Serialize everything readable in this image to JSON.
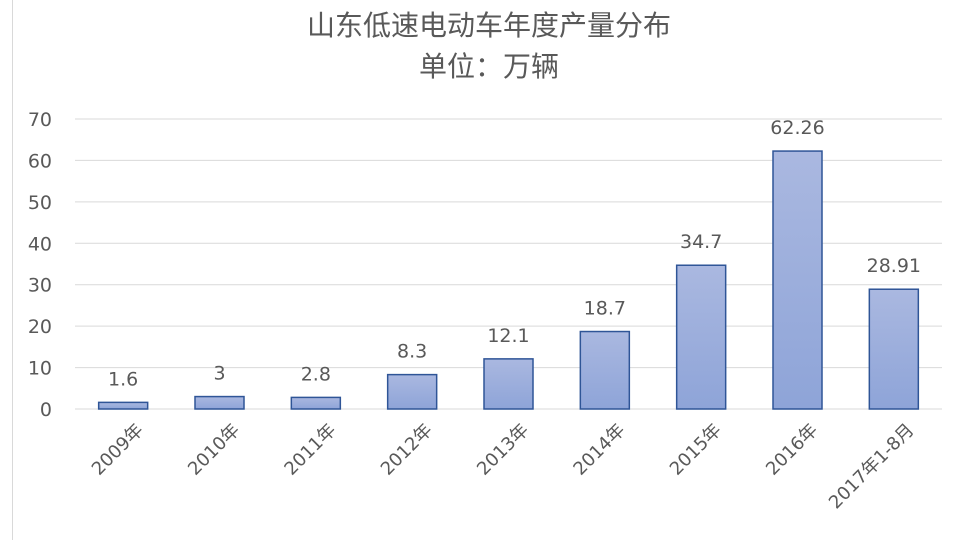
{
  "chart_data": {
    "type": "bar",
    "title": "山东低速电动车年度产量分布",
    "subtitle": "单位：万辆",
    "categories": [
      "2009年",
      "2010年",
      "2011年",
      "2012年",
      "2013年",
      "2014年",
      "2015年",
      "2016年",
      "2017年1-8月"
    ],
    "values": [
      1.6,
      3,
      2.8,
      8.3,
      12.1,
      18.7,
      34.7,
      62.26,
      28.91
    ],
    "value_labels": [
      "1.6",
      "3",
      "2.8",
      "8.3",
      "12.1",
      "18.7",
      "34.7",
      "62.26",
      "28.91"
    ],
    "y_ticks": [
      "0",
      "10",
      "20",
      "30",
      "40",
      "50",
      "60",
      "70"
    ],
    "ylim": [
      0,
      70
    ],
    "grid": true,
    "legend": "none",
    "colors": {
      "bar_top": "#aab8e0",
      "bar_bottom": "#8ea4d8",
      "bar_stroke": "#2f5597",
      "grid": "#d9d9d9",
      "text": "#595959"
    }
  }
}
